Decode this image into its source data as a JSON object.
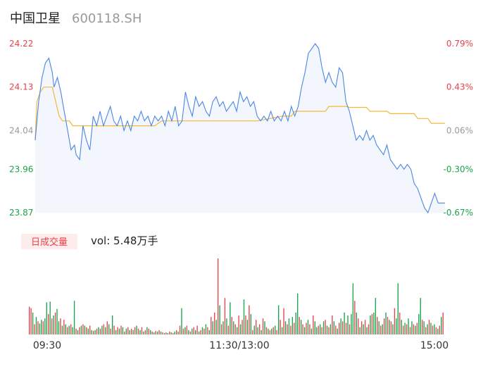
{
  "header": {
    "stock_name": "中国卫星",
    "stock_code": "600118.SH"
  },
  "colors": {
    "price_line": "#4a86e8",
    "avg_line": "#f5b73b",
    "up": "#e8424a",
    "down": "#1aa34a",
    "neutral": "#999999",
    "area_fill": "#f3f6fc",
    "badge_bg": "#fdecec"
  },
  "volume_section": {
    "badge_label": "日成交量",
    "vol_text": "vol: 5.48万手"
  },
  "chart_data": {
    "type": "line",
    "price_axis": {
      "ylim": [
        23.87,
        24.22
      ],
      "tick_labels": [
        "24.22",
        "24.13",
        "24.04",
        "23.96",
        "23.87"
      ],
      "tick_values": [
        24.22,
        24.13,
        24.04,
        23.96,
        23.87
      ],
      "tick_colors": [
        "up",
        "up",
        "neutral",
        "down",
        "down"
      ]
    },
    "percent_axis": {
      "tick_labels": [
        "0.79%",
        "0.43%",
        "0.06%",
        "-0.30%",
        "-0.67%"
      ],
      "tick_colors": [
        "up",
        "up",
        "neutral",
        "down",
        "down"
      ]
    },
    "time_axis": {
      "tick_labels": [
        "09:30",
        "11:30/13:00",
        "15:00"
      ],
      "range": [
        0,
        240
      ]
    },
    "series": [
      {
        "key": "price",
        "points": [
          [
            0,
            24.02
          ],
          [
            2,
            24.1
          ],
          [
            4,
            24.15
          ],
          [
            6,
            24.18
          ],
          [
            8,
            24.19
          ],
          [
            10,
            24.16
          ],
          [
            11,
            24.13
          ],
          [
            13,
            24.15
          ],
          [
            15,
            24.12
          ],
          [
            17,
            24.08
          ],
          [
            19,
            24.04
          ],
          [
            21,
            24.0
          ],
          [
            23,
            24.01
          ],
          [
            24,
            23.99
          ],
          [
            26,
            23.98
          ],
          [
            28,
            24.05
          ],
          [
            30,
            24.02
          ],
          [
            32,
            24.0
          ],
          [
            34,
            24.07
          ],
          [
            36,
            24.05
          ],
          [
            38,
            24.08
          ],
          [
            40,
            24.05
          ],
          [
            42,
            24.07
          ],
          [
            44,
            24.09
          ],
          [
            46,
            24.06
          ],
          [
            48,
            24.05
          ],
          [
            50,
            24.07
          ],
          [
            52,
            24.04
          ],
          [
            54,
            24.06
          ],
          [
            56,
            24.04
          ],
          [
            58,
            24.07
          ],
          [
            60,
            24.06
          ],
          [
            62,
            24.08
          ],
          [
            64,
            24.06
          ],
          [
            66,
            24.07
          ],
          [
            68,
            24.05
          ],
          [
            70,
            24.07
          ],
          [
            72,
            24.06
          ],
          [
            74,
            24.07
          ],
          [
            76,
            24.05
          ],
          [
            78,
            24.08
          ],
          [
            80,
            24.06
          ],
          [
            82,
            24.09
          ],
          [
            84,
            24.05
          ],
          [
            86,
            24.06
          ],
          [
            88,
            24.12
          ],
          [
            90,
            24.09
          ],
          [
            92,
            24.07
          ],
          [
            94,
            24.11
          ],
          [
            96,
            24.09
          ],
          [
            98,
            24.1
          ],
          [
            100,
            24.08
          ],
          [
            102,
            24.07
          ],
          [
            104,
            24.1
          ],
          [
            106,
            24.11
          ],
          [
            108,
            24.09
          ],
          [
            110,
            24.1
          ],
          [
            112,
            24.08
          ],
          [
            114,
            24.09
          ],
          [
            116,
            24.1
          ],
          [
            118,
            24.08
          ],
          [
            120,
            24.12
          ],
          [
            122,
            24.1
          ],
          [
            124,
            24.11
          ],
          [
            126,
            24.09
          ],
          [
            128,
            24.1
          ],
          [
            130,
            24.07
          ],
          [
            132,
            24.06
          ],
          [
            134,
            24.07
          ],
          [
            136,
            24.06
          ],
          [
            138,
            24.08
          ],
          [
            140,
            24.06
          ],
          [
            142,
            24.07
          ],
          [
            144,
            24.06
          ],
          [
            146,
            24.08
          ],
          [
            148,
            24.06
          ],
          [
            150,
            24.09
          ],
          [
            152,
            24.07
          ],
          [
            154,
            24.09
          ],
          [
            156,
            24.13
          ],
          [
            158,
            24.16
          ],
          [
            160,
            24.2
          ],
          [
            162,
            24.21
          ],
          [
            164,
            24.22
          ],
          [
            166,
            24.21
          ],
          [
            168,
            24.17
          ],
          [
            170,
            24.14
          ],
          [
            172,
            24.16
          ],
          [
            174,
            24.14
          ],
          [
            176,
            24.13
          ],
          [
            178,
            24.17
          ],
          [
            180,
            24.16
          ],
          [
            182,
            24.1
          ],
          [
            184,
            24.08
          ],
          [
            186,
            24.05
          ],
          [
            188,
            24.02
          ],
          [
            190,
            24.03
          ],
          [
            192,
            24.02
          ],
          [
            194,
            24.04
          ],
          [
            196,
            24.02
          ],
          [
            198,
            24.03
          ],
          [
            200,
            24.01
          ],
          [
            202,
            24.0
          ],
          [
            204,
            23.99
          ],
          [
            206,
            24.01
          ],
          [
            208,
            23.98
          ],
          [
            210,
            23.97
          ],
          [
            212,
            23.96
          ],
          [
            214,
            23.97
          ],
          [
            216,
            23.96
          ],
          [
            218,
            23.97
          ],
          [
            220,
            23.96
          ],
          [
            222,
            23.93
          ],
          [
            224,
            23.92
          ],
          [
            226,
            23.9
          ],
          [
            228,
            23.88
          ],
          [
            230,
            23.87
          ],
          [
            232,
            23.89
          ],
          [
            234,
            23.91
          ],
          [
            236,
            23.89
          ],
          [
            238,
            23.89
          ],
          [
            240,
            23.89
          ]
        ]
      },
      {
        "key": "average",
        "points": [
          [
            0,
            24.02
          ],
          [
            1,
            24.1
          ],
          [
            3,
            24.12
          ],
          [
            5,
            24.13
          ],
          [
            10,
            24.13
          ],
          [
            12,
            24.1
          ],
          [
            14,
            24.07
          ],
          [
            16,
            24.06
          ],
          [
            20,
            24.06
          ],
          [
            22,
            24.05
          ],
          [
            26,
            24.05
          ],
          [
            40,
            24.05
          ],
          [
            50,
            24.05
          ],
          [
            60,
            24.05
          ],
          [
            70,
            24.05
          ],
          [
            74,
            24.06
          ],
          [
            90,
            24.06
          ],
          [
            110,
            24.06
          ],
          [
            130,
            24.06
          ],
          [
            145,
            24.07
          ],
          [
            150,
            24.07
          ],
          [
            152,
            24.08
          ],
          [
            160,
            24.08
          ],
          [
            170,
            24.08
          ],
          [
            172,
            24.09
          ],
          [
            182,
            24.09
          ],
          [
            184,
            24.088
          ],
          [
            194,
            24.088
          ],
          [
            196,
            24.08
          ],
          [
            206,
            24.08
          ],
          [
            208,
            24.075
          ],
          [
            222,
            24.075
          ],
          [
            224,
            24.065
          ],
          [
            230,
            24.065
          ],
          [
            232,
            24.055
          ],
          [
            240,
            24.055
          ]
        ]
      }
    ],
    "volume": {
      "unit": "万手",
      "total": 5.48,
      "values": [
        38,
        36,
        30,
        14,
        24,
        18,
        15,
        20,
        18,
        22,
        44,
        28,
        45,
        22,
        26,
        30,
        35,
        18,
        22,
        12,
        20,
        14,
        10,
        12,
        14,
        10,
        46,
        8,
        6,
        10,
        12,
        14,
        12,
        10,
        8,
        12,
        6,
        5,
        6,
        8,
        10,
        8,
        12,
        14,
        10,
        18,
        14,
        8,
        26,
        12,
        6,
        10,
        8,
        12,
        10,
        4,
        8,
        10,
        6,
        8,
        6,
        10,
        12,
        8,
        6,
        10,
        4,
        6,
        10,
        8,
        6,
        4,
        3,
        5,
        4,
        6,
        4,
        3,
        2,
        3,
        2,
        4,
        3,
        2,
        4,
        6,
        4,
        12,
        36,
        8,
        10,
        12,
        6,
        4,
        8,
        10,
        6,
        12,
        4,
        6,
        10,
        8,
        14,
        10,
        6,
        24,
        18,
        30,
        20,
        104,
        40,
        14,
        18,
        50,
        22,
        12,
        44,
        24,
        18,
        14,
        10,
        26,
        14,
        20,
        48,
        26,
        20,
        40,
        28,
        6,
        12,
        20,
        10,
        14,
        6,
        22,
        18,
        10,
        8,
        6,
        8,
        10,
        12,
        6,
        40,
        20,
        10,
        36,
        18,
        14,
        22,
        12,
        24,
        16,
        30,
        56,
        24,
        20,
        14,
        10,
        16,
        20,
        14,
        8,
        26,
        18,
        10,
        12,
        14,
        10,
        18,
        20,
        12,
        10,
        14,
        26,
        18,
        12,
        8,
        16,
        22,
        18,
        30,
        16,
        26,
        14,
        28,
        70,
        46,
        30,
        22,
        10,
        18,
        14,
        20,
        10,
        14,
        26,
        28,
        30,
        50,
        24,
        18,
        12,
        14,
        22,
        30,
        24,
        20,
        18,
        14,
        36,
        22,
        70,
        30,
        20,
        12,
        16,
        14,
        22,
        10,
        18,
        14,
        12,
        16,
        28,
        50,
        20,
        18,
        10,
        14,
        20,
        16,
        12,
        14,
        10,
        8,
        12,
        24,
        30
      ],
      "direction": [
        "u",
        "u",
        "d",
        "u",
        "d",
        "u",
        "d",
        "d",
        "u",
        "d",
        "d",
        "u",
        "d",
        "u",
        "d",
        "u",
        "d",
        "d",
        "u",
        "d",
        "u",
        "d",
        "u",
        "d",
        "u",
        "d",
        "d",
        "u",
        "d",
        "u",
        "d",
        "u",
        "d",
        "u",
        "d",
        "u",
        "d",
        "u",
        "d",
        "u",
        "d",
        "u",
        "d",
        "u",
        "d",
        "u",
        "d",
        "u",
        "d",
        "u",
        "d",
        "u",
        "d",
        "u",
        "d",
        "u",
        "d",
        "u",
        "d",
        "u",
        "d",
        "u",
        "d",
        "u",
        "d",
        "u",
        "d",
        "u",
        "d",
        "u",
        "d",
        "u",
        "d",
        "u",
        "d",
        "u",
        "d",
        "u",
        "d",
        "u",
        "d",
        "u",
        "d",
        "u",
        "d",
        "u",
        "d",
        "u",
        "d",
        "u",
        "d",
        "u",
        "d",
        "u",
        "d",
        "u",
        "d",
        "u",
        "d",
        "u",
        "d",
        "u",
        "d",
        "u",
        "d",
        "u",
        "d",
        "u",
        "d",
        "u",
        "d",
        "u",
        "d",
        "u",
        "d",
        "u",
        "d",
        "u",
        "d",
        "u",
        "d",
        "u",
        "d",
        "u",
        "d",
        "u",
        "d",
        "u",
        "d",
        "u",
        "d",
        "u",
        "d",
        "u",
        "d",
        "u",
        "d",
        "u",
        "d",
        "u",
        "d",
        "u",
        "d",
        "u",
        "d",
        "u",
        "d",
        "u",
        "d",
        "u",
        "d",
        "u",
        "d",
        "u",
        "d",
        "d",
        "u",
        "d",
        "u",
        "d",
        "u",
        "d",
        "u",
        "d",
        "u",
        "d",
        "d",
        "u",
        "d",
        "u",
        "d",
        "u",
        "d",
        "u",
        "d",
        "u",
        "d",
        "u",
        "d",
        "u",
        "d",
        "u",
        "d",
        "u",
        "d",
        "u",
        "d",
        "d",
        "u",
        "d",
        "u",
        "d",
        "u",
        "d",
        "u",
        "d",
        "u",
        "d",
        "u",
        "d",
        "d",
        "u",
        "d",
        "u",
        "d",
        "u",
        "d",
        "u",
        "d",
        "u",
        "d",
        "u",
        "d",
        "d",
        "u",
        "d",
        "u",
        "d",
        "u",
        "d",
        "u",
        "d",
        "u",
        "d",
        "u",
        "d",
        "d",
        "u",
        "d",
        "u",
        "d",
        "u",
        "d",
        "u",
        "d",
        "u",
        "d",
        "u",
        "d",
        "u"
      ]
    }
  }
}
